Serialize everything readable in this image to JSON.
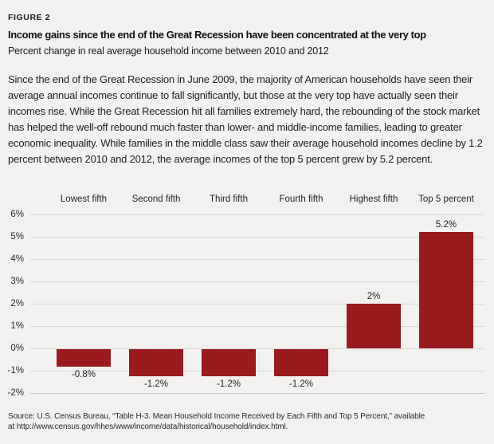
{
  "figure_label": "FIGURE 2",
  "title": "Income gains since the end of the Great Recession have been concentrated at the very top",
  "subtitle": "Percent change in real average household income between 2010 and 2012",
  "body_text": "Since the end of the Great Recession in June 2009, the majority of American households have seen their average annual incomes continue to fall significantly, but those at the very top have actually seen their incomes rise. While the Great Recession hit all families extremely hard, the rebounding of the stock market has helped the well-off rebound much faster than lower- and middle-income families, leading to greater economic inequality. While families in the middle class saw their average household incomes decline by 1.2 percent between 2010 and 2012, the average incomes of the top 5 percent grew by 5.2 percent.",
  "source": {
    "line1": "Source: U.S. Census Bureau, “Table H-3. Mean Household Income Received by Each Fifth and Top 5 Percent,” available",
    "line2": "at http://www.census.gov/hhes/www/income/data/historical/household/index.html."
  },
  "colors": {
    "background": "#f2f1ef",
    "bar": "#9a1b1e",
    "gridline": "#d8d7d4",
    "text": "#1b1b1b"
  },
  "chart_data": {
    "type": "bar",
    "title": "Income gains since the end of the Great Recession have been concentrated at the very top",
    "subtitle": "Percent change in real average household income between 2010 and 2012",
    "categories": [
      "Lowest fifth",
      "Second fifth",
      "Third fifth",
      "Fourth fifth",
      "Highest fifth",
      "Top 5 percent"
    ],
    "values": [
      -0.8,
      -1.2,
      -1.2,
      -1.2,
      2,
      5.2
    ],
    "value_labels": [
      "-0.8%",
      "-1.2%",
      "-1.2%",
      "-1.2%",
      "2%",
      "5.2%"
    ],
    "y_ticks": [
      {
        "label": "6%",
        "value": 6
      },
      {
        "label": "5%",
        "value": 5
      },
      {
        "label": "4%",
        "value": 4
      },
      {
        "label": "3%",
        "value": 3
      },
      {
        "label": "2%",
        "value": 2
      },
      {
        "label": "1%",
        "value": 1
      },
      {
        "label": "0%",
        "value": 0
      },
      {
        "label": "-1%",
        "value": -1
      },
      {
        "label": "-2%",
        "value": -2
      }
    ],
    "ylim": [
      -2,
      6
    ],
    "xlabel": "",
    "ylabel": "",
    "grid": true,
    "legend": false,
    "bar_color": "#9a1b1e"
  }
}
